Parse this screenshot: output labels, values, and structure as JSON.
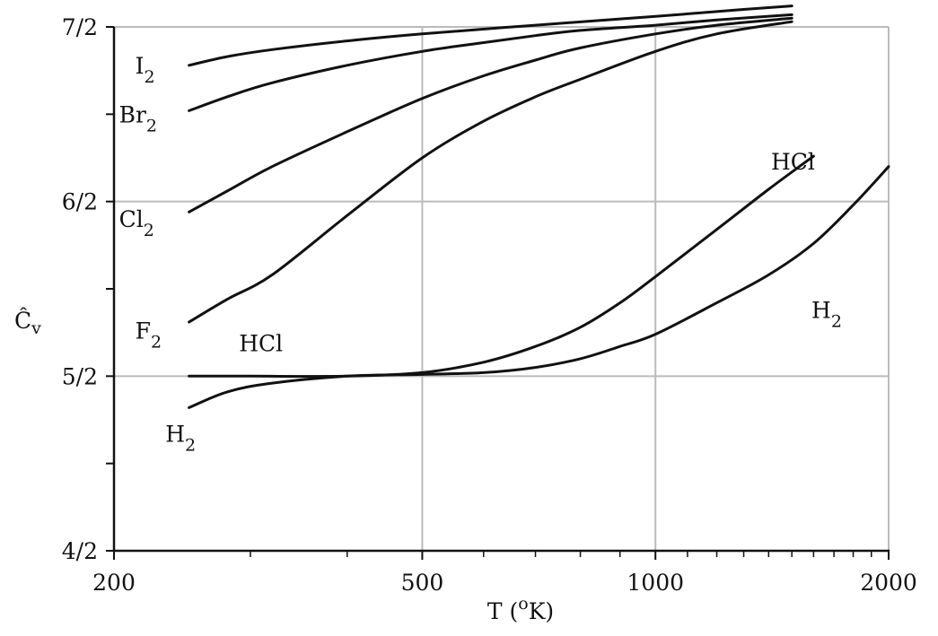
{
  "chart_data": {
    "type": "line",
    "title": "",
    "xlabel": "T (°K)",
    "xlabel_parts": {
      "pre": "T (",
      "sup": "o",
      "post": "K)"
    },
    "ylabel": "Ĉv",
    "ylabel_parts": {
      "main": "Ĉ",
      "sub": "v"
    },
    "x_scale": "log",
    "xlim": [
      200,
      2000
    ],
    "ylim": [
      2.0,
      3.5
    ],
    "grid": true,
    "legend": "none",
    "x_ticks_major": [
      200,
      500,
      1000,
      2000
    ],
    "x_tick_labels": [
      "200",
      "500",
      "1000",
      "2000"
    ],
    "x_ticks_minor": [
      300,
      400,
      600,
      700,
      800,
      900,
      1100,
      1200,
      1300,
      1400,
      1500,
      1600,
      1700,
      1800,
      1900
    ],
    "y_ticks": [
      2.0,
      2.25,
      2.5,
      2.75,
      3.0,
      3.25,
      3.5
    ],
    "y_tick_labels": [
      {
        "value": 2.0,
        "text": "4/2"
      },
      {
        "value": 2.5,
        "text": "5/2"
      },
      {
        "value": 3.0,
        "text": "6/2"
      },
      {
        "value": 3.5,
        "text": "7/2"
      }
    ],
    "grid_x": [
      500,
      1000
    ],
    "grid_y": [
      2.5,
      3.0,
      3.5
    ],
    "colors": {
      "line": "#111111",
      "grid": "#bbbbbb",
      "axis": "#111111"
    },
    "series": [
      {
        "id": "i2",
        "label": "I",
        "label_sub": "2",
        "label_at": [
          213,
          3.39
        ],
        "x": [
          250,
          280,
          320,
          400,
          500,
          700,
          1000,
          1300,
          1500
        ],
        "y": [
          3.39,
          3.415,
          3.435,
          3.46,
          3.48,
          3.505,
          3.53,
          3.55,
          3.56
        ]
      },
      {
        "id": "br2",
        "label": "Br",
        "label_sub": "2",
        "label_at": [
          203,
          3.25
        ],
        "x": [
          250,
          280,
          320,
          400,
          500,
          600,
          700,
          800,
          1000,
          1200,
          1500
        ],
        "y": [
          3.26,
          3.3,
          3.34,
          3.39,
          3.43,
          3.455,
          3.475,
          3.49,
          3.505,
          3.52,
          3.535
        ]
      },
      {
        "id": "cl2",
        "label": "Cl",
        "label_sub": "2",
        "label_at": [
          203,
          2.95
        ],
        "x": [
          250,
          280,
          320,
          400,
          500,
          600,
          700,
          800,
          1000,
          1200,
          1500
        ],
        "y": [
          2.97,
          3.03,
          3.1,
          3.2,
          3.295,
          3.36,
          3.405,
          3.44,
          3.48,
          3.505,
          3.525
        ]
      },
      {
        "id": "f2",
        "label": "F",
        "label_sub": "2",
        "label_at": [
          213,
          2.63
        ],
        "x": [
          250,
          280,
          320,
          400,
          500,
          600,
          700,
          800,
          1000,
          1200,
          1500
        ],
        "y": [
          2.655,
          2.72,
          2.79,
          2.96,
          3.125,
          3.23,
          3.3,
          3.35,
          3.43,
          3.48,
          3.515
        ]
      },
      {
        "id": "hcl",
        "label": "HCl",
        "label_at": [
          290,
          2.595
        ],
        "label2": "HCl",
        "label2_at": [
          1410,
          3.115
        ],
        "x": [
          250,
          300,
          400,
          500,
          600,
          700,
          800,
          900,
          1000,
          1200,
          1400,
          1600
        ],
        "y": [
          2.5,
          2.5,
          2.5,
          2.51,
          2.54,
          2.585,
          2.64,
          2.71,
          2.785,
          2.92,
          3.035,
          3.13
        ]
      },
      {
        "id": "h2",
        "label": "H",
        "label_sub": "2",
        "label_at": [
          233,
          2.335
        ],
        "label2": "H",
        "label2_sub": "2",
        "label2_at": [
          1590,
          2.69
        ],
        "x": [
          250,
          280,
          320,
          400,
          500,
          600,
          700,
          800,
          900,
          1000,
          1200,
          1400,
          1600,
          1800,
          2000
        ],
        "y": [
          2.41,
          2.455,
          2.48,
          2.5,
          2.505,
          2.51,
          2.525,
          2.55,
          2.585,
          2.62,
          2.71,
          2.79,
          2.88,
          2.99,
          3.1
        ]
      }
    ]
  }
}
